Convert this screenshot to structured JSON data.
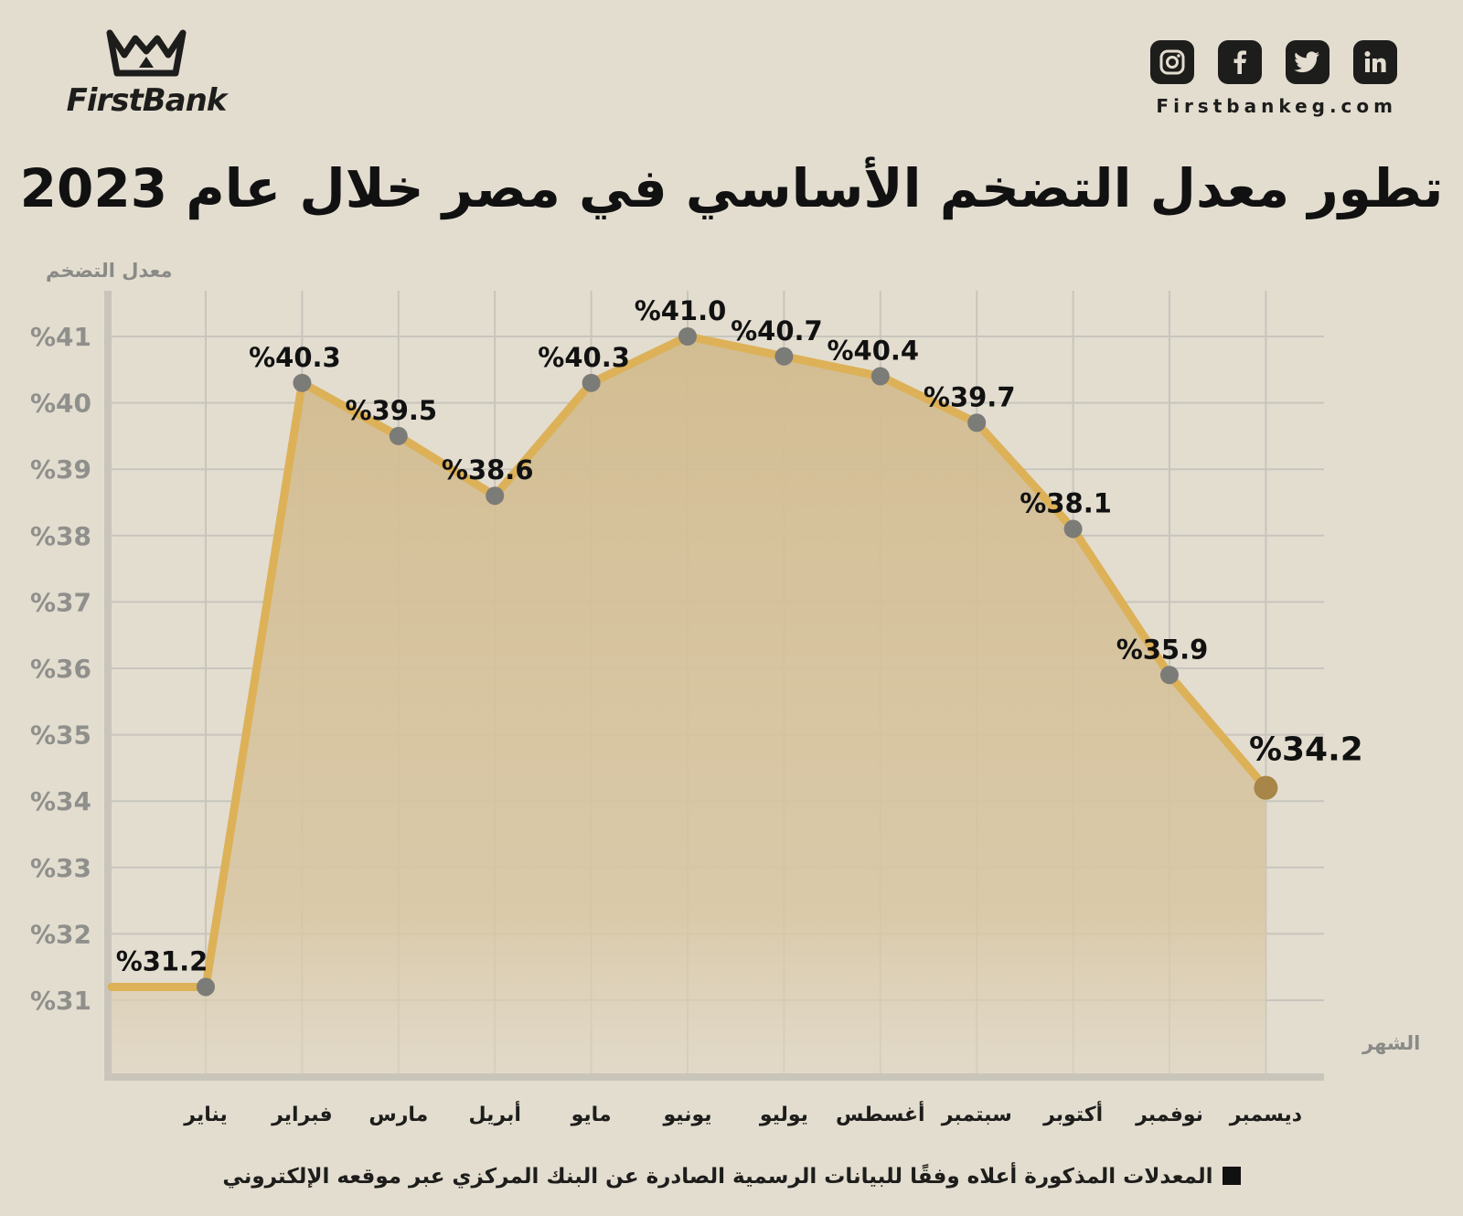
{
  "brand": {
    "name": "FirstBank",
    "website": "Firstbankeg.com",
    "social_icons": [
      "instagram-icon",
      "facebook-icon",
      "twitter-icon",
      "linkedin-icon"
    ]
  },
  "title": "تطور معدل التضخم الأساسي في مصر خلال عام 2023",
  "footnote": "المعدلات المذكورة أعلاه وفقًا للبيانات الرسمية الصادرة عن البنك المركزي عبر موقعه الإلكتروني",
  "chart_data": {
    "type": "area",
    "title": "تطور معدل التضخم الأساسي في مصر خلال عام 2023",
    "xlabel": "الشهر",
    "ylabel": "معدل التضخم",
    "ylim": [
      30,
      41.5
    ],
    "yticks": [
      31,
      32,
      33,
      34,
      35,
      36,
      37,
      38,
      39,
      40,
      41
    ],
    "ytick_labels": [
      "%31",
      "%32",
      "%33",
      "%34",
      "%35",
      "%36",
      "%37",
      "%38",
      "%39",
      "%40",
      "%41"
    ],
    "categories": [
      "يناير",
      "فبراير",
      "مارس",
      "أبريل",
      "مايو",
      "يونيو",
      "يوليو",
      "أغسطس",
      "سبتمبر",
      "أكتوبر",
      "نوفمبر",
      "ديسمبر"
    ],
    "values": [
      31.2,
      40.3,
      39.5,
      38.6,
      40.3,
      41.0,
      40.7,
      40.4,
      39.7,
      38.1,
      35.9,
      34.2
    ],
    "data_labels": [
      "%31.2",
      "%40.3",
      "%39.5",
      "%38.6",
      "%40.3",
      "%41.0",
      "%40.7",
      "%40.4",
      "%39.7",
      "%38.1",
      "%35.9",
      "%34.2"
    ],
    "grid": true,
    "colors": {
      "line": "#ddb158",
      "fill": "#d4bf96",
      "marker": "#7b7b78",
      "last_marker": "#a88548",
      "axis": "#c9c5ba",
      "grid": "#c8c5bd",
      "background": "#e3ddd0"
    }
  }
}
